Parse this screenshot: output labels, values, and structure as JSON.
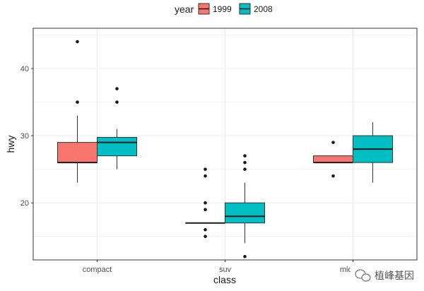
{
  "chart_data": {
    "type": "boxplot",
    "title": "",
    "xlabel": "class",
    "ylabel": "hwy",
    "categories": [
      "compact",
      "suv",
      "midsize"
    ],
    "ylim": [
      11.5,
      46
    ],
    "yticks": [
      20,
      30,
      40
    ],
    "legend": {
      "title": "year",
      "position": "top"
    },
    "series": [
      {
        "name": "1999",
        "color": "#F8766D",
        "boxes": [
          {
            "category": "compact",
            "min": 23,
            "q1": 26,
            "median": 26,
            "q3": 29,
            "max": 33,
            "outliers": [
              35,
              44
            ]
          },
          {
            "category": "suv",
            "min": 17,
            "q1": 17,
            "median": 17,
            "q3": 17,
            "max": 17,
            "outliers": [
              15,
              16,
              19,
              20,
              24,
              25
            ]
          },
          {
            "category": "midsize",
            "min": 26,
            "q1": 26,
            "median": 26,
            "q3": 27,
            "max": 27,
            "outliers": [
              24,
              29
            ]
          }
        ]
      },
      {
        "name": "2008",
        "color": "#00BFC4",
        "boxes": [
          {
            "category": "compact",
            "min": 25,
            "q1": 27,
            "median": 29,
            "q3": 29.75,
            "max": 31,
            "outliers": [
              35,
              37
            ]
          },
          {
            "category": "suv",
            "min": 14,
            "q1": 17,
            "median": 18,
            "q3": 20,
            "max": 23,
            "outliers": [
              12,
              25,
              26,
              27
            ]
          },
          {
            "category": "midsize",
            "min": 23,
            "q1": 26,
            "median": 28,
            "q3": 30,
            "max": 32,
            "outliers": []
          }
        ]
      }
    ]
  },
  "watermark": {
    "text": "植峰基因"
  }
}
